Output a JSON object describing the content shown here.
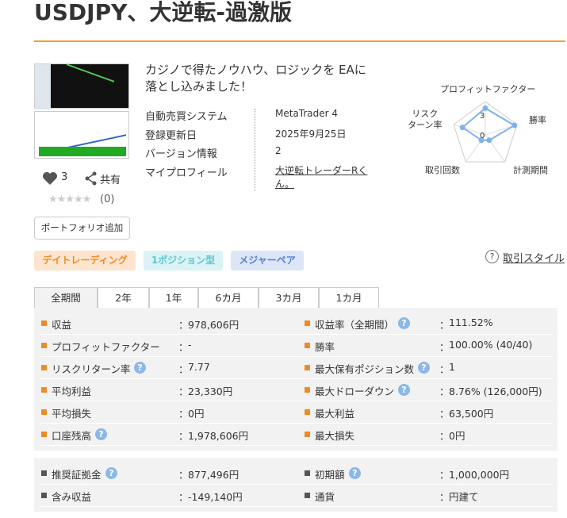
{
  "header": {
    "title": "USDJPY、大逆転-過激版"
  },
  "product": {
    "likes": 3,
    "share": "共有",
    "stars": "★★★★★",
    "review_count": "(0)",
    "portfolio_button": "ポートフォリオ追加",
    "description": [
      "カジノで得たノウハウ、ロジックを EAに",
      "落とし込みました！"
    ],
    "info": [
      {
        "label": "自動売買システム",
        "value": "MetaTrader 4"
      },
      {
        "label": "登録更新日",
        "value": "2025年9月25日"
      },
      {
        "label": "バージョン情報",
        "value": "2"
      },
      {
        "label": "マイプロフィール",
        "value": "大逆転トレーダーRくん。",
        "link": true
      }
    ]
  },
  "radar": {
    "type": "radar",
    "axes": [
      "プロフィットファクター",
      "勝率",
      "計測期間",
      "取引回数",
      "リスク\nターン率"
    ],
    "rlim": [
      0,
      5
    ],
    "rticks": [
      3,
      0
    ],
    "values": [
      4,
      4.6,
      1,
      1,
      3.6
    ],
    "color": "#7fb2ea"
  },
  "tags": [
    {
      "label": "デイトレーディング",
      "color": "#f08a24",
      "bg": "#fde4cf"
    },
    {
      "label": "1ポジション型",
      "color": "#5ec6cf",
      "bg": "#dcf3f5"
    },
    {
      "label": "メジャーペア",
      "color": "#4f7fd8",
      "bg": "#dde6f7"
    }
  ],
  "style_link": "取引スタイル",
  "help_icon": "?",
  "tabs": [
    "全期間",
    "2年",
    "1年",
    "6カ月",
    "3カ月",
    "1カ月"
  ],
  "stats": {
    "sep": "：",
    "sections": [
      {
        "bullet_color": "#f08a24",
        "rows": [
          [
            {
              "label": "収益",
              "value": "978,606円"
            },
            {
              "label": "収益率（全期間）",
              "value": "111.52%",
              "help": true
            }
          ],
          [
            {
              "label": "プロフィットファクター",
              "value": "-"
            },
            {
              "label": "勝率",
              "value": "100.00% (40/40)"
            }
          ],
          [
            {
              "label": "リスクリターン率",
              "value": "7.77",
              "help": true
            },
            {
              "label": "最大保有ポジション数",
              "value": "1",
              "help": true
            }
          ],
          [
            {
              "label": "平均利益",
              "value": "23,330円"
            },
            {
              "label": "最大ドローダウン",
              "value": "8.76% (126,000円)",
              "help": true
            }
          ],
          [
            {
              "label": "平均損失",
              "value": "0円"
            },
            {
              "label": "最大利益",
              "value": "63,500円"
            }
          ],
          [
            {
              "label": "口座残高",
              "value": "1,978,606円",
              "help": true
            },
            {
              "label": "最大損失",
              "value": "0円"
            }
          ]
        ]
      },
      {
        "bullet_color": "#555555",
        "rows": [
          [
            {
              "label": "推奨証拠金",
              "value": "877,496円",
              "help": true
            },
            {
              "label": "初期額",
              "value": "1,000,000円",
              "help": true
            }
          ],
          [
            {
              "label": "含み収益",
              "value": "-149,140円"
            },
            {
              "label": "通貨",
              "value": "円建て"
            }
          ]
        ]
      }
    ]
  }
}
